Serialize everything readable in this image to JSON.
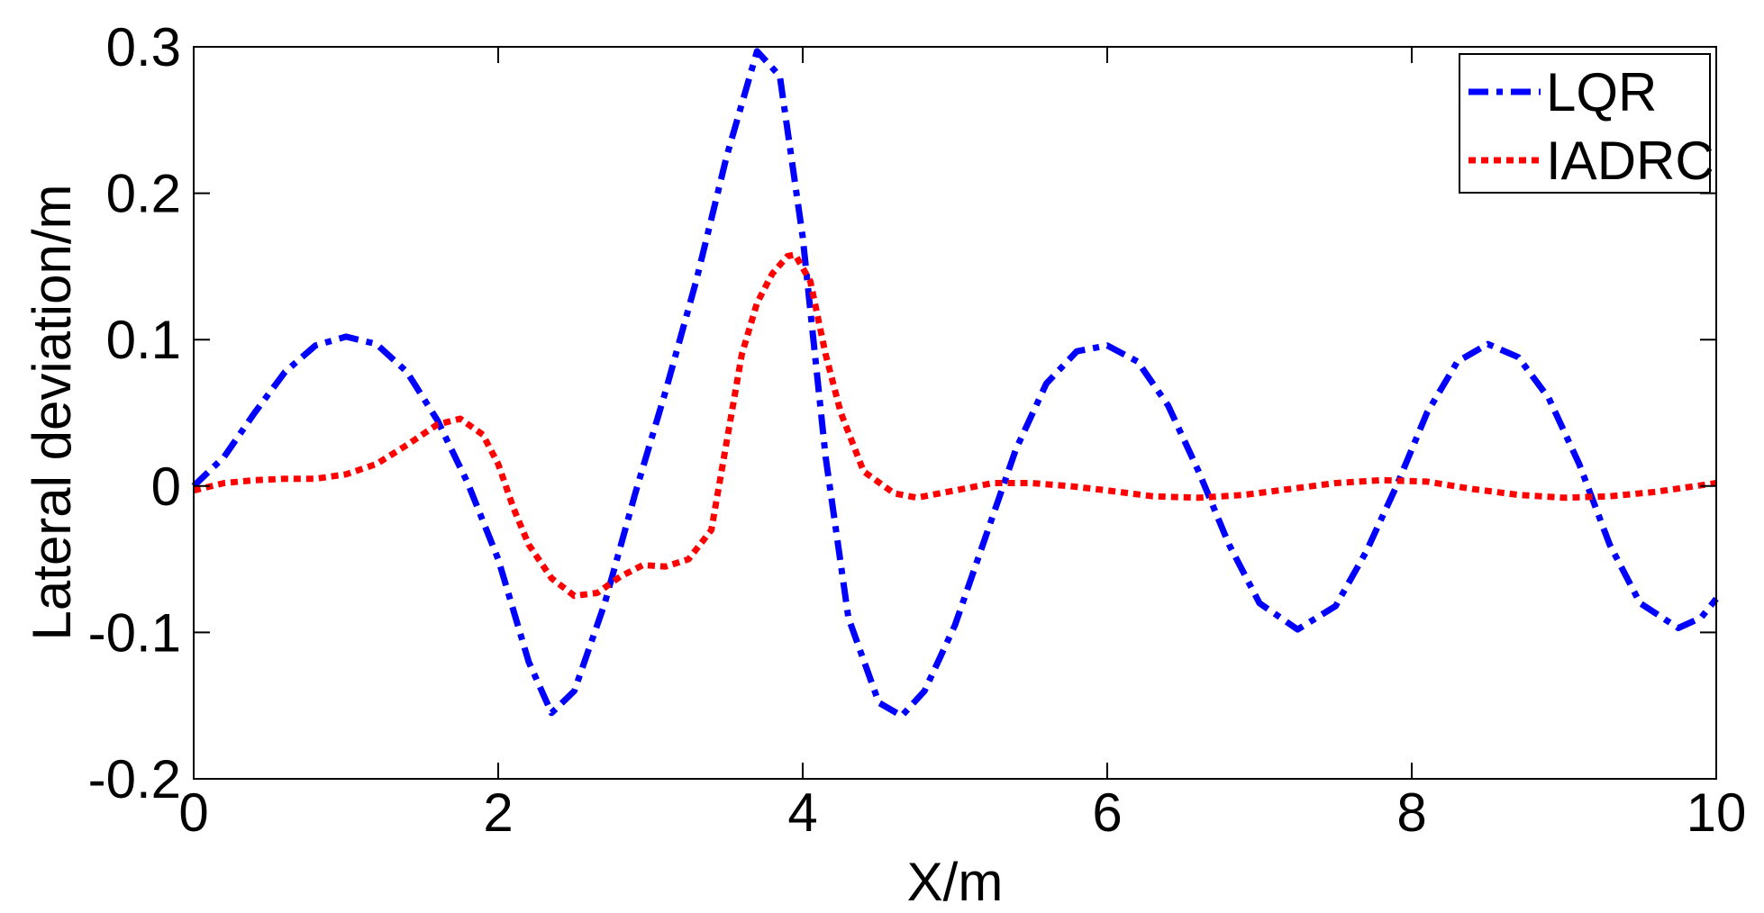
{
  "chart_data": {
    "type": "line",
    "title": "",
    "xlabel": "X/m",
    "ylabel": "Lateral deviation/m",
    "xlim": [
      0,
      10
    ],
    "ylim": [
      -0.2,
      0.3
    ],
    "x_ticks": [
      "0",
      "2",
      "4",
      "6",
      "8",
      "10"
    ],
    "x_tick_values": [
      0,
      2,
      4,
      6,
      8,
      10
    ],
    "y_ticks": [
      "-0.2",
      "-0.1",
      "0",
      "0.1",
      "0.2",
      "0.3"
    ],
    "y_tick_values": [
      -0.2,
      -0.1,
      0,
      0.1,
      0.2,
      0.3
    ],
    "grid": false,
    "legend_position": "top-right",
    "series": [
      {
        "name": "LQR",
        "color": "#0000ff",
        "line_style": "dash-dot",
        "points": [
          [
            0.0,
            0.0
          ],
          [
            0.2,
            0.02
          ],
          [
            0.4,
            0.05
          ],
          [
            0.6,
            0.078
          ],
          [
            0.8,
            0.096
          ],
          [
            1.0,
            0.102
          ],
          [
            1.2,
            0.097
          ],
          [
            1.4,
            0.078
          ],
          [
            1.6,
            0.045
          ],
          [
            1.8,
            0.002
          ],
          [
            2.0,
            -0.05
          ],
          [
            2.2,
            -0.12
          ],
          [
            2.35,
            -0.155
          ],
          [
            2.5,
            -0.14
          ],
          [
            2.7,
            -0.08
          ],
          [
            2.9,
            -0.005
          ],
          [
            3.1,
            0.065
          ],
          [
            3.3,
            0.14
          ],
          [
            3.5,
            0.225
          ],
          [
            3.7,
            0.297
          ],
          [
            3.85,
            0.28
          ],
          [
            4.0,
            0.17
          ],
          [
            4.15,
            0.02
          ],
          [
            4.3,
            -0.09
          ],
          [
            4.5,
            -0.148
          ],
          [
            4.65,
            -0.157
          ],
          [
            4.8,
            -0.14
          ],
          [
            5.0,
            -0.095
          ],
          [
            5.2,
            -0.035
          ],
          [
            5.4,
            0.025
          ],
          [
            5.6,
            0.07
          ],
          [
            5.8,
            0.092
          ],
          [
            6.0,
            0.096
          ],
          [
            6.2,
            0.085
          ],
          [
            6.4,
            0.055
          ],
          [
            6.6,
            0.01
          ],
          [
            6.8,
            -0.04
          ],
          [
            7.0,
            -0.08
          ],
          [
            7.25,
            -0.098
          ],
          [
            7.5,
            -0.082
          ],
          [
            7.7,
            -0.045
          ],
          [
            7.9,
            0.0
          ],
          [
            8.1,
            0.05
          ],
          [
            8.3,
            0.085
          ],
          [
            8.5,
            0.097
          ],
          [
            8.7,
            0.088
          ],
          [
            8.9,
            0.06
          ],
          [
            9.1,
            0.015
          ],
          [
            9.3,
            -0.04
          ],
          [
            9.5,
            -0.08
          ],
          [
            9.75,
            -0.097
          ],
          [
            9.9,
            -0.09
          ],
          [
            10.0,
            -0.077
          ]
        ]
      },
      {
        "name": "IADRC",
        "color": "#ff0000",
        "line_style": "dotted",
        "points": [
          [
            0.0,
            -0.003
          ],
          [
            0.2,
            0.002
          ],
          [
            0.4,
            0.004
          ],
          [
            0.6,
            0.005
          ],
          [
            0.8,
            0.005
          ],
          [
            1.0,
            0.008
          ],
          [
            1.2,
            0.015
          ],
          [
            1.4,
            0.028
          ],
          [
            1.6,
            0.042
          ],
          [
            1.75,
            0.046
          ],
          [
            1.9,
            0.035
          ],
          [
            2.0,
            0.015
          ],
          [
            2.1,
            -0.015
          ],
          [
            2.2,
            -0.04
          ],
          [
            2.35,
            -0.063
          ],
          [
            2.5,
            -0.075
          ],
          [
            2.65,
            -0.073
          ],
          [
            2.8,
            -0.062
          ],
          [
            2.95,
            -0.054
          ],
          [
            3.1,
            -0.055
          ],
          [
            3.25,
            -0.05
          ],
          [
            3.4,
            -0.03
          ],
          [
            3.5,
            0.03
          ],
          [
            3.6,
            0.09
          ],
          [
            3.7,
            0.125
          ],
          [
            3.8,
            0.145
          ],
          [
            3.9,
            0.157
          ],
          [
            3.95,
            0.158
          ],
          [
            4.05,
            0.14
          ],
          [
            4.15,
            0.09
          ],
          [
            4.25,
            0.05
          ],
          [
            4.4,
            0.01
          ],
          [
            4.6,
            -0.005
          ],
          [
            4.75,
            -0.008
          ],
          [
            5.0,
            -0.003
          ],
          [
            5.25,
            0.002
          ],
          [
            5.5,
            0.002
          ],
          [
            5.75,
            0.0
          ],
          [
            6.0,
            -0.003
          ],
          [
            6.3,
            -0.007
          ],
          [
            6.6,
            -0.008
          ],
          [
            6.9,
            -0.006
          ],
          [
            7.2,
            -0.002
          ],
          [
            7.5,
            0.002
          ],
          [
            7.8,
            0.004
          ],
          [
            8.1,
            0.003
          ],
          [
            8.4,
            -0.002
          ],
          [
            8.7,
            -0.006
          ],
          [
            9.0,
            -0.008
          ],
          [
            9.3,
            -0.007
          ],
          [
            9.6,
            -0.004
          ],
          [
            9.8,
            -0.001
          ],
          [
            10.0,
            0.002
          ]
        ]
      }
    ]
  }
}
